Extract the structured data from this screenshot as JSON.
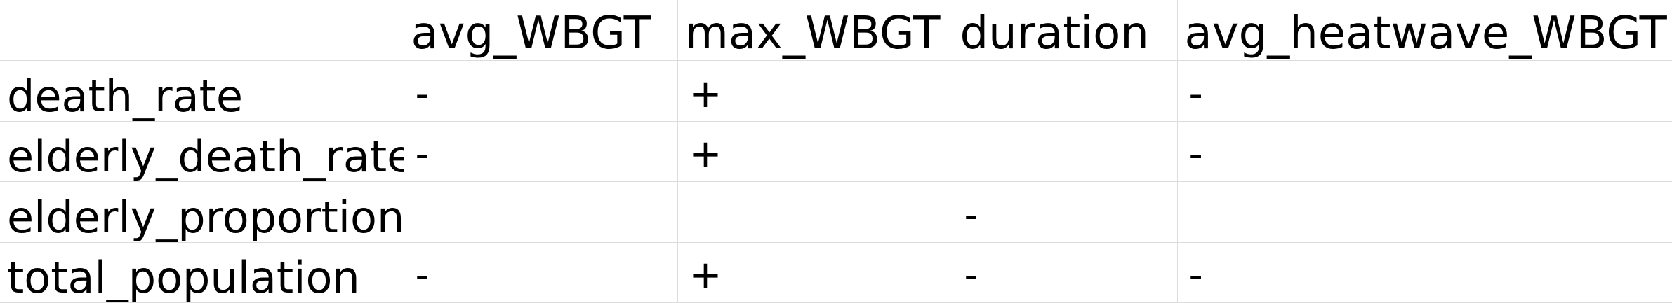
{
  "table": {
    "columns": [
      "",
      "avg_WBGT",
      "max_WBGT",
      "duration",
      "avg_heatwave_WBGT"
    ],
    "rows": [
      {
        "label": "death_rate",
        "cells": [
          "-",
          "+",
          "",
          "-"
        ]
      },
      {
        "label": "elderly_death_rate",
        "cells": [
          "-",
          "+",
          "",
          "-"
        ]
      },
      {
        "label": "elderly_proportion",
        "cells": [
          "",
          "",
          "-",
          ""
        ]
      },
      {
        "label": "total_population",
        "cells": [
          "-",
          "+",
          "-",
          "-"
        ]
      }
    ]
  },
  "colors": {
    "gridline": "#dcdcdc",
    "text": "#000000",
    "background": "#ffffff"
  }
}
